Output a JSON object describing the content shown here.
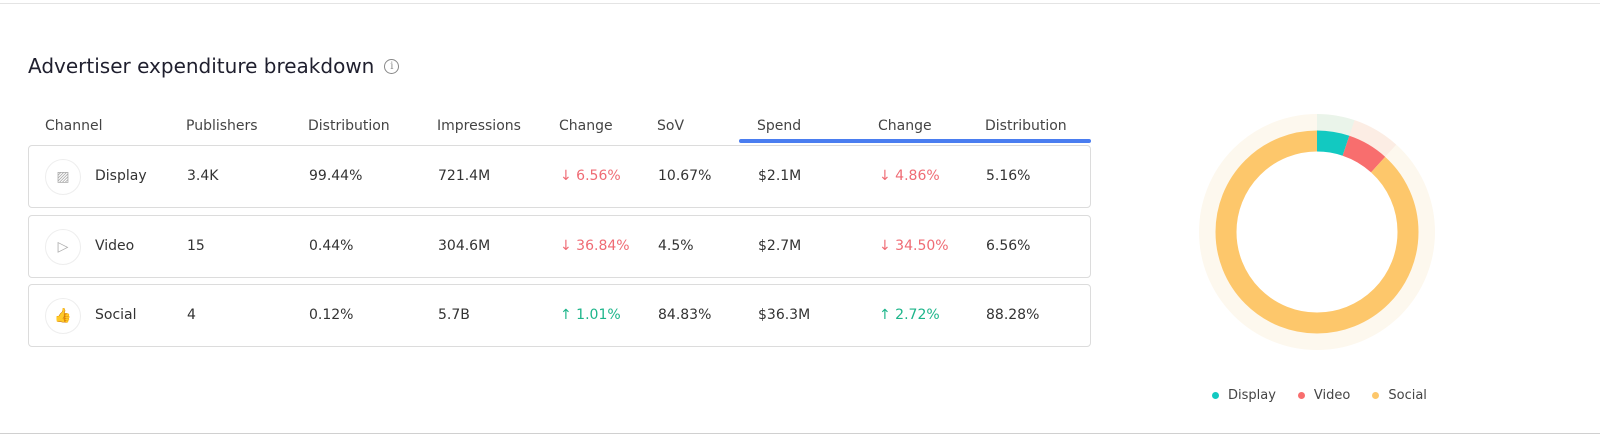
{
  "title": "Advertiser expenditure breakdown",
  "columns": [
    "Channel",
    "Publishers",
    "Distribution",
    "Impressions",
    "Change",
    "SoV",
    "Spend",
    "Change",
    "Distribution"
  ],
  "rows": [
    {
      "icon": "image-icon",
      "channel": "Display",
      "publishers": "3.4K",
      "distribution": "99.44%",
      "impressions": "721.4M",
      "change": "↓ 6.56%",
      "change_dir": "down",
      "sov": "10.67%",
      "spend": "$2.1M",
      "spend_change": "↓ 4.86%",
      "spend_change_dir": "down",
      "spend_distribution": "5.16%"
    },
    {
      "icon": "play-icon",
      "channel": "Video",
      "publishers": "15",
      "distribution": "0.44%",
      "impressions": "304.6M",
      "change": "↓ 36.84%",
      "change_dir": "down",
      "sov": "4.5%",
      "spend": "$2.7M",
      "spend_change": "↓ 34.50%",
      "spend_change_dir": "down",
      "spend_distribution": "6.56%"
    },
    {
      "icon": "thumbs-up-icon",
      "channel": "Social",
      "publishers": "4",
      "distribution": "0.12%",
      "impressions": "5.7B",
      "change": "↑ 1.01%",
      "change_dir": "up",
      "sov": "84.83%",
      "spend": "$36.3M",
      "spend_change": "↑ 2.72%",
      "spend_change_dir": "up",
      "spend_distribution": "88.28%"
    }
  ],
  "chart_data": {
    "type": "pie",
    "donut": true,
    "categories": [
      "Display",
      "Video",
      "Social"
    ],
    "values": [
      5.16,
      6.56,
      88.28
    ],
    "colors": [
      "#12c9c1",
      "#f86e6e",
      "#fdc76b"
    ],
    "legend": "bottom"
  }
}
